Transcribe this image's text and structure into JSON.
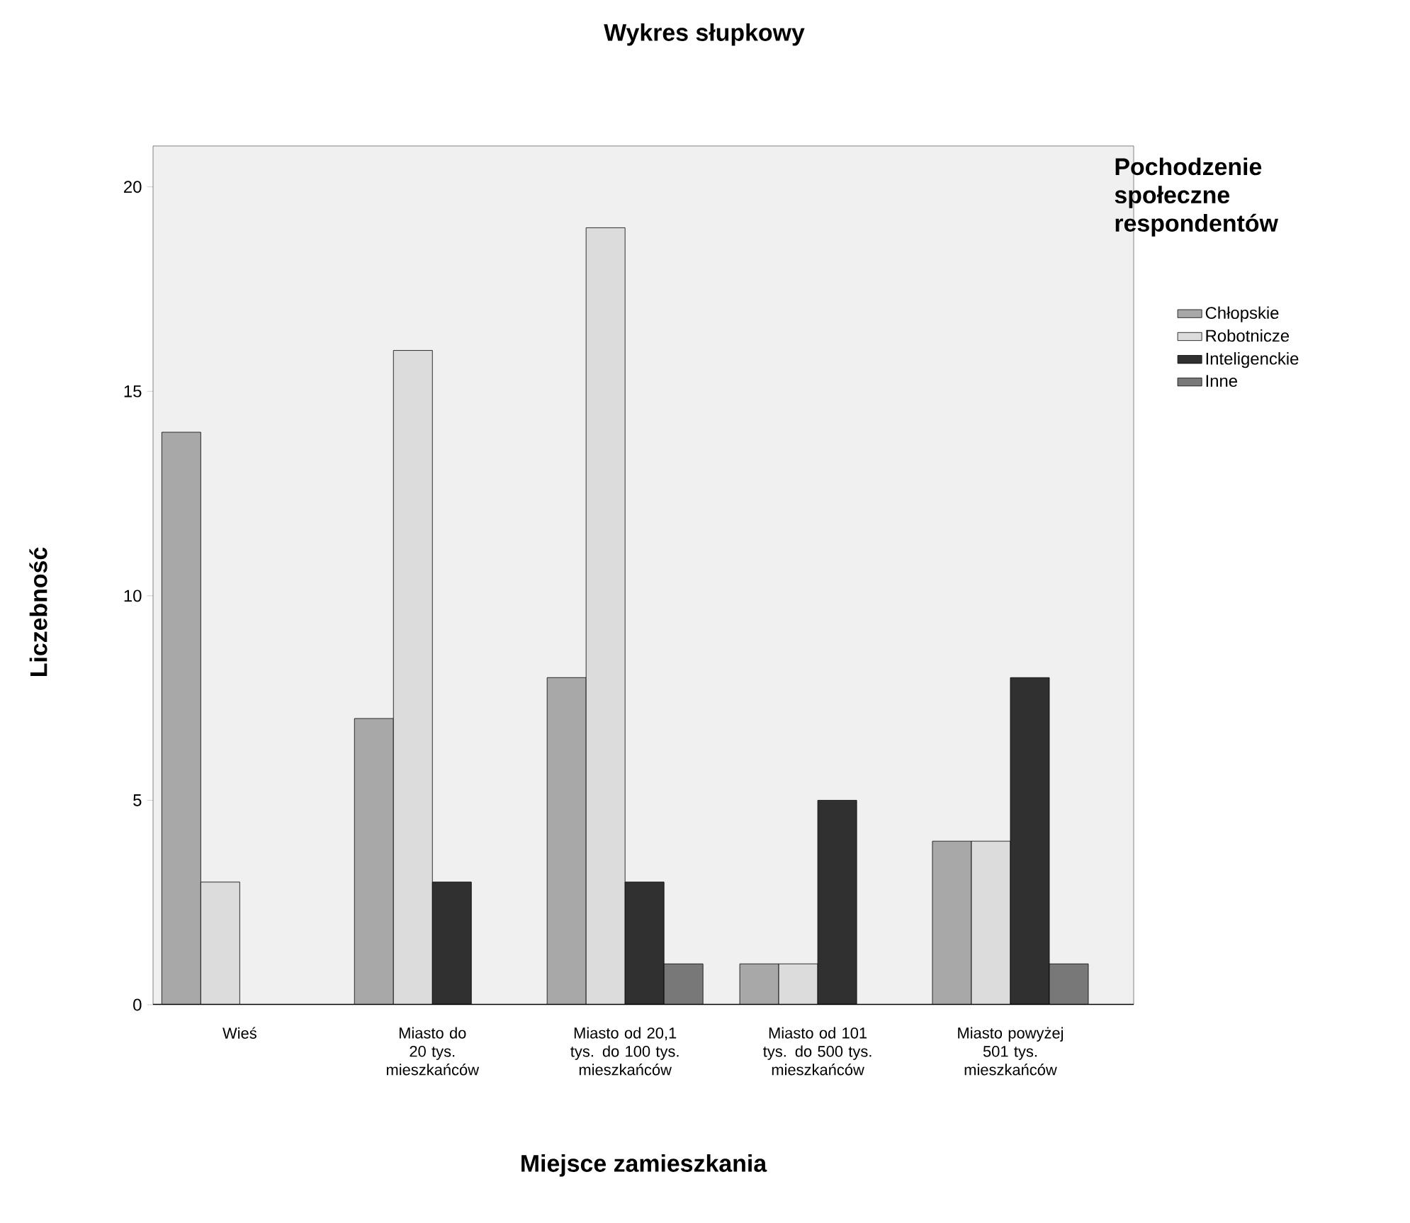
{
  "chart_data": {
    "type": "bar",
    "title": "Wykres słupkowy",
    "xlabel": "Miejsce zamieszkania",
    "ylabel": "Liczebność",
    "legend_title": "Pochodzenie społeczne respondentów",
    "categories": [
      "Wieś",
      "Miasto do 20 tys. mieszkańców",
      "Miasto od 20,1 tys. do 100 tys. mieszkańców",
      "Miasto od 101 tys. do 500 tys. mieszkańców",
      "Miasto powyżej 501 tys. mieszkańców"
    ],
    "series": [
      {
        "name": "Chłopskie",
        "color": "#a8a8a8",
        "values": [
          14,
          7,
          8,
          1,
          4
        ]
      },
      {
        "name": "Robotnicze",
        "color": "#dcdcdc",
        "values": [
          3,
          16,
          19,
          1,
          4
        ]
      },
      {
        "name": "Inteligenckie",
        "color": "#303030",
        "values": [
          null,
          3,
          3,
          5,
          8
        ]
      },
      {
        "name": "Inne",
        "color": "#787878",
        "values": [
          null,
          null,
          1,
          null,
          1
        ]
      }
    ],
    "ylim": [
      0,
      21
    ],
    "yticks": [
      0,
      5,
      10,
      15,
      20
    ],
    "legend": "right"
  }
}
